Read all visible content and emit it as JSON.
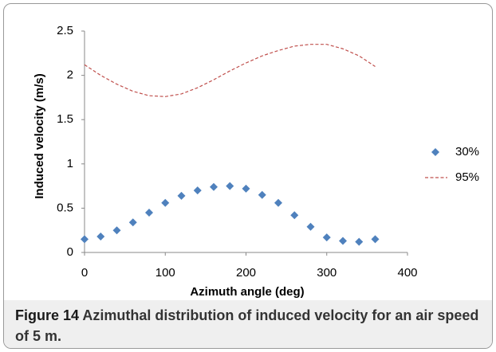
{
  "chart_data": {
    "type": "scatter",
    "x_label": "Azimuth angle (deg)",
    "y_label": "Induced velocity (m/s)",
    "x": [
      0,
      20,
      40,
      60,
      80,
      100,
      120,
      140,
      160,
      180,
      200,
      220,
      240,
      260,
      280,
      300,
      320,
      340,
      360
    ],
    "series": [
      {
        "name": "30%",
        "color": "#4f81bd",
        "style": "marker",
        "values": [
          0.15,
          0.18,
          0.25,
          0.34,
          0.45,
          0.56,
          0.64,
          0.7,
          0.74,
          0.75,
          0.72,
          0.65,
          0.56,
          0.42,
          0.29,
          0.17,
          0.13,
          0.12,
          0.15
        ]
      },
      {
        "name": "95%",
        "color": "#c0504d",
        "style": "dashed-line",
        "values": [
          2.12,
          2.0,
          1.9,
          1.82,
          1.77,
          1.76,
          1.79,
          1.86,
          1.95,
          2.05,
          2.14,
          2.22,
          2.28,
          2.33,
          2.35,
          2.35,
          2.3,
          2.22,
          2.1
        ]
      }
    ],
    "xlim": [
      0,
      400
    ],
    "xticks": [
      0,
      100,
      200,
      300,
      400
    ],
    "ylim": [
      0,
      2.5
    ],
    "yticks": [
      0,
      0.5,
      1,
      1.5,
      2,
      2.5
    ],
    "grid": false,
    "legend": "right"
  },
  "caption": {
    "label": "Figure 14",
    "text": "Azimuthal distribution of induced velocity for an air speed of 5 m."
  }
}
